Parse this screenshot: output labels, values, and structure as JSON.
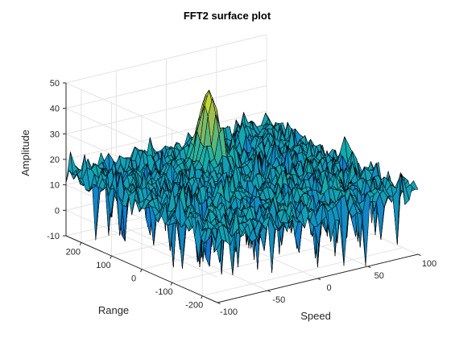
{
  "chart_data": {
    "type": "surface",
    "title": "FFT2 surface plot",
    "xlabel": "Speed",
    "ylabel": "Range",
    "zlabel": "Amplitude",
    "xlim": [
      -100,
      100
    ],
    "ylim": [
      -250,
      250
    ],
    "zlim": [
      -10,
      50
    ],
    "xticks": [
      -100,
      -50,
      0,
      50,
      100
    ],
    "yticks": [
      -200,
      -100,
      0,
      100,
      200
    ],
    "zticks": [
      -10,
      0,
      10,
      20,
      30,
      40,
      50
    ],
    "grid": true,
    "colormap": "parula",
    "edge_color": "#000000",
    "noise_floor": {
      "mean": 15,
      "min": -10,
      "max": 25
    },
    "peak": {
      "speed": 0,
      "range": 110,
      "amplitude": 45
    }
  }
}
